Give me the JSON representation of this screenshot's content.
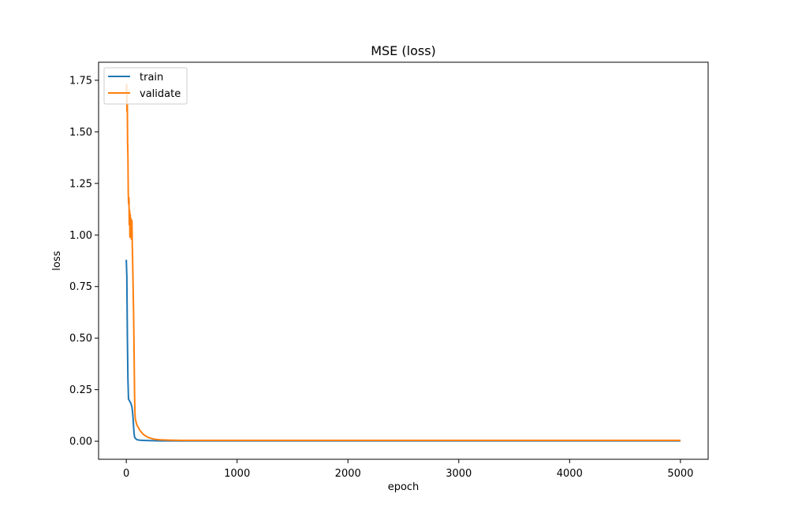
{
  "chart_data": {
    "type": "line",
    "title": "MSE (loss)",
    "xlabel": "epoch",
    "ylabel": "loss",
    "xlim": [
      -250,
      5250
    ],
    "ylim": [
      -0.0875,
      1.8375
    ],
    "xticks": [
      0,
      1000,
      2000,
      3000,
      4000,
      5000
    ],
    "xtick_labels": [
      "0",
      "1000",
      "2000",
      "3000",
      "4000",
      "5000"
    ],
    "yticks": [
      0.0,
      0.25,
      0.5,
      0.75,
      1.0,
      1.25,
      1.5,
      1.75
    ],
    "ytick_labels": [
      "0.00",
      "0.25",
      "0.50",
      "0.75",
      "1.00",
      "1.25",
      "1.50",
      "1.75"
    ],
    "grid": false,
    "legend_position": "upper left",
    "series": [
      {
        "name": "train",
        "color": "#1f77b4",
        "x": [
          0,
          5,
          10,
          15,
          20,
          25,
          30,
          40,
          50,
          55,
          60,
          65,
          70,
          75,
          80,
          90,
          100,
          120,
          150,
          200,
          300,
          400,
          500,
          1000,
          2000,
          3000,
          4000,
          5000
        ],
        "y": [
          0.88,
          0.8,
          0.5,
          0.3,
          0.205,
          0.2,
          0.195,
          0.185,
          0.17,
          0.15,
          0.12,
          0.08,
          0.04,
          0.02,
          0.015,
          0.01,
          0.007,
          0.005,
          0.004,
          0.003,
          0.002,
          0.002,
          0.002,
          0.002,
          0.002,
          0.002,
          0.002,
          0.002
        ]
      },
      {
        "name": "validate",
        "color": "#ff7f0e",
        "x": [
          0,
          3,
          6,
          9,
          12,
          15,
          18,
          21,
          24,
          27,
          30,
          33,
          36,
          39,
          42,
          45,
          48,
          51,
          54,
          57,
          60,
          63,
          66,
          69,
          72,
          75,
          78,
          81,
          85,
          90,
          95,
          100,
          110,
          120,
          130,
          140,
          150,
          175,
          200,
          250,
          300,
          400,
          500,
          1000,
          1500,
          2000,
          2500,
          3000,
          3500,
          4000,
          4500,
          5000
        ],
        "y": [
          1.7,
          1.73,
          1.6,
          1.65,
          1.45,
          1.38,
          1.2,
          1.15,
          1.18,
          1.05,
          1.12,
          0.99,
          1.1,
          1.0,
          1.08,
          0.98,
          1.05,
          1.07,
          0.95,
          0.88,
          0.8,
          0.7,
          0.62,
          0.5,
          0.35,
          0.22,
          0.14,
          0.11,
          0.1,
          0.09,
          0.08,
          0.075,
          0.065,
          0.055,
          0.048,
          0.042,
          0.035,
          0.025,
          0.018,
          0.01,
          0.007,
          0.005,
          0.004,
          0.004,
          0.004,
          0.004,
          0.004,
          0.004,
          0.004,
          0.004,
          0.004,
          0.004
        ]
      }
    ]
  }
}
